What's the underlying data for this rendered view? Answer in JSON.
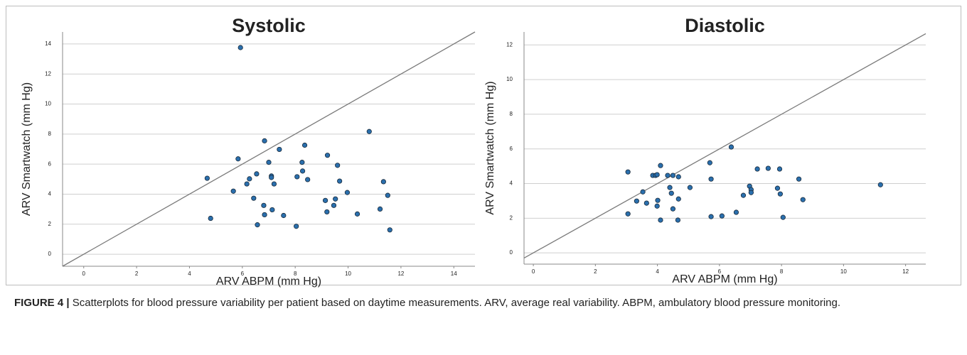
{
  "chart_data": [
    {
      "type": "scatter",
      "title": "Systolic",
      "x_label": "ARV ABPM (mm Hg)",
      "y_label": "ARV Smartwatch (mm Hg)",
      "color": "#2a6fad",
      "identity_line": true,
      "grid": true,
      "xlim": [
        -0.8,
        14.8
      ],
      "ylim": [
        -0.8,
        14.8
      ],
      "xticks": [
        0,
        2,
        4,
        6,
        8,
        10,
        12,
        14
      ],
      "yticks": [
        0,
        2,
        4,
        6,
        8,
        10,
        12,
        14
      ],
      "x": [
        4.67,
        4.8,
        5.93,
        5.84,
        5.66,
        6.17,
        6.27,
        6.43,
        6.54,
        6.57,
        6.81,
        6.84,
        6.84,
        7.0,
        7.1,
        7.1,
        7.13,
        7.2,
        7.4,
        7.56,
        8.04,
        8.07,
        8.26,
        8.28,
        8.36,
        8.47,
        9.22,
        9.14,
        9.2,
        9.46,
        9.52,
        9.6,
        9.68,
        9.97,
        10.35,
        10.8,
        11.21,
        11.34,
        11.5,
        11.58
      ],
      "y": [
        5.06,
        2.39,
        13.76,
        6.35,
        4.2,
        4.68,
        5.02,
        3.73,
        5.35,
        1.96,
        3.25,
        2.63,
        7.55,
        6.12,
        5.21,
        5.11,
        2.96,
        4.68,
        6.98,
        2.58,
        1.86,
        5.16,
        6.12,
        5.54,
        7.26,
        4.97,
        6.59,
        3.58,
        2.82,
        3.25,
        3.68,
        5.92,
        4.87,
        4.11,
        2.68,
        8.17,
        3.01,
        4.83,
        3.92,
        1.62
      ]
    },
    {
      "type": "scatter",
      "title": "Diastolic",
      "x_label": "ARV ABPM (mm Hg)",
      "y_label": "ARV Smartwatch (mm Hg)",
      "color": "#2a6fad",
      "identity_line": true,
      "grid": true,
      "xlim": [
        -0.3,
        12.65
      ],
      "ylim": [
        -0.65,
        12.75
      ],
      "xticks": [
        0,
        2,
        4,
        6,
        8,
        10,
        12
      ],
      "yticks": [
        0,
        2,
        4,
        6,
        8,
        10,
        12
      ],
      "x": [
        3.05,
        3.05,
        3.33,
        3.53,
        3.65,
        3.85,
        3.94,
        3.99,
        3.99,
        4.01,
        4.1,
        4.1,
        4.33,
        4.4,
        4.45,
        4.5,
        4.5,
        4.68,
        4.68,
        4.66,
        5.05,
        5.69,
        5.73,
        5.73,
        6.08,
        6.38,
        6.54,
        6.77,
        6.97,
        7.02,
        7.02,
        7.22,
        7.57,
        7.87,
        7.94,
        7.96,
        8.05,
        8.56,
        8.69,
        11.19
      ],
      "y": [
        4.67,
        2.25,
        2.99,
        3.52,
        2.87,
        4.47,
        4.47,
        4.51,
        2.7,
        3.03,
        5.04,
        1.89,
        4.47,
        3.77,
        3.44,
        4.47,
        2.54,
        3.11,
        4.39,
        1.89,
        3.77,
        5.2,
        4.26,
        2.09,
        2.13,
        6.11,
        2.34,
        3.32,
        3.85,
        3.65,
        3.48,
        4.84,
        4.88,
        3.73,
        4.84,
        3.4,
        2.05,
        4.26,
        3.07,
        3.93
      ]
    }
  ],
  "caption": {
    "label": "FIGURE 4 |",
    "text": "Scatterplots for blood pressure variability per patient based on daytime measurements. ARV, average real variability. ABPM, ambulatory blood pressure monitoring."
  }
}
